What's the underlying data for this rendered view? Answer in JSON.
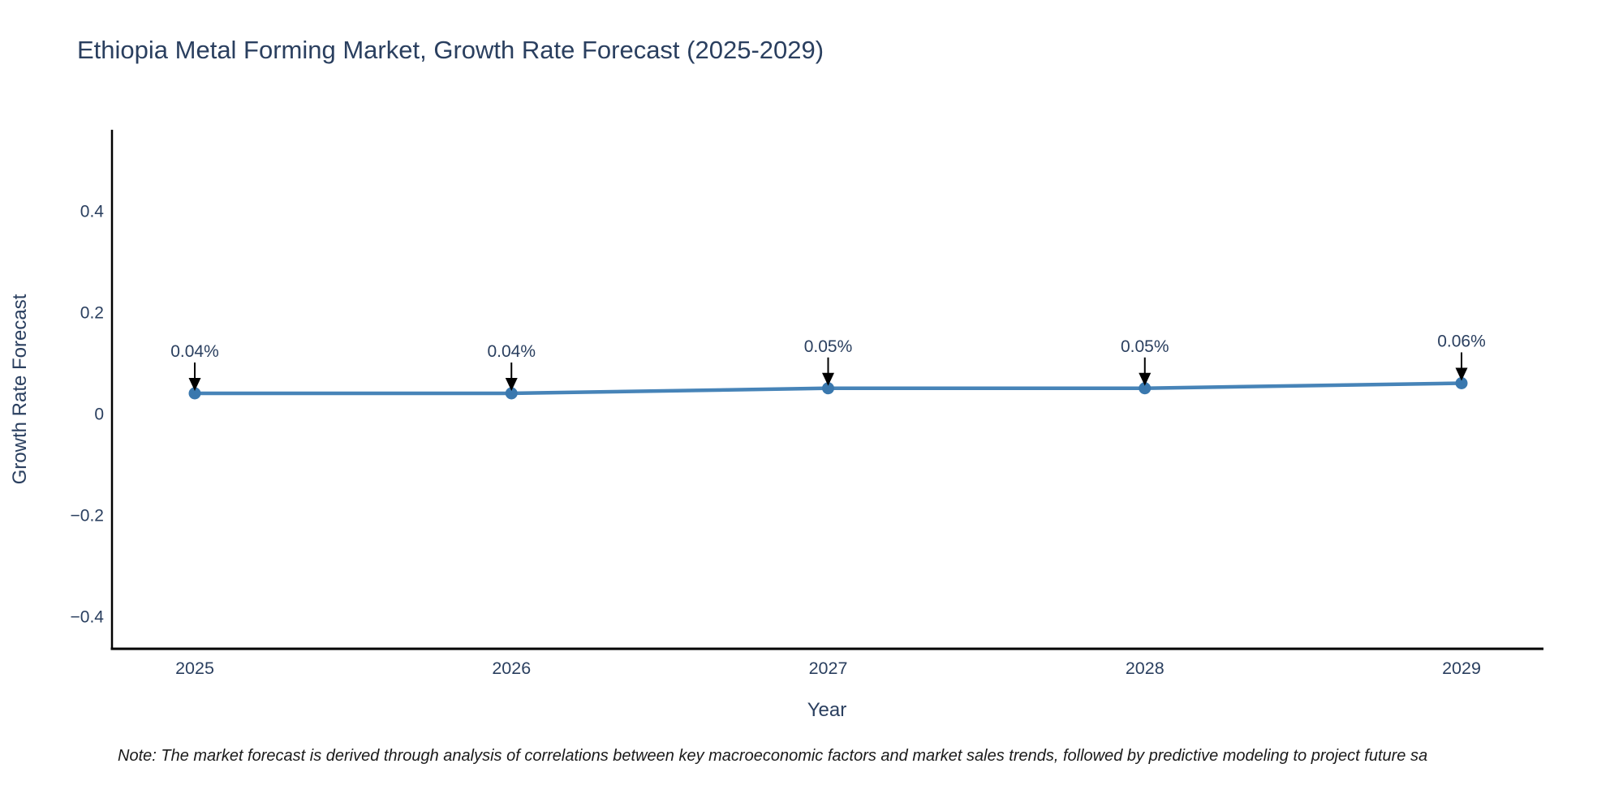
{
  "chart_data": {
    "type": "line",
    "title": "Ethiopia Metal Forming Market, Growth Rate Forecast (2025-2029)",
    "xlabel": "Year",
    "ylabel": "Growth Rate Forecast",
    "categories": [
      "2025",
      "2026",
      "2027",
      "2028",
      "2029"
    ],
    "values": [
      0.04,
      0.04,
      0.05,
      0.05,
      0.06
    ],
    "point_labels": [
      "0.04%",
      "0.04%",
      "0.05%",
      "0.05%",
      "0.06%"
    ],
    "y_ticks": [
      0.4,
      0.2,
      0,
      -0.2,
      -0.4
    ],
    "y_tick_labels": [
      "0.4",
      "0.2",
      "0",
      "−0.2",
      "−0.4"
    ],
    "ylim": [
      -0.46,
      0.56
    ],
    "grid": false,
    "legend_position": "none",
    "marker_style": "filled-circle-with-down-arrow-annotation",
    "note": "Note: The market forecast is derived through analysis of correlations between key macroeconomic factors and market sales trends, followed by predictive modeling to project future sa",
    "colors": {
      "line": "#4784b8",
      "marker": "#3a78ae",
      "arrow": "#000000",
      "text": "#2a3f5f",
      "axis": "#000000",
      "background": "#ffffff"
    }
  }
}
